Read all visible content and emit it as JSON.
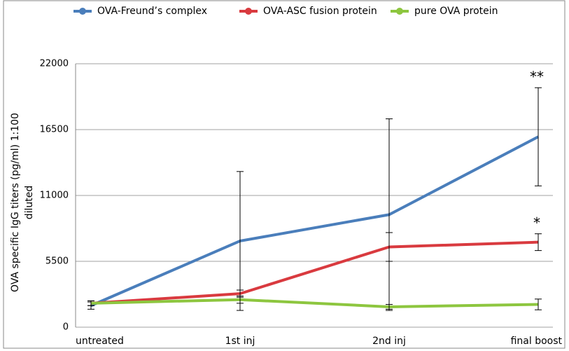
{
  "chart_data": {
    "type": "line",
    "ylabel": [
      "OVA specific IgG titers (pg/ml)  1:100",
      "diluted"
    ],
    "categories": [
      "untreated",
      "1st inj",
      "2nd inj",
      "final boost"
    ],
    "series": [
      {
        "name": "OVA-Freund’s complex",
        "color": "#4a7ebb",
        "values": [
          1800,
          7200,
          9400,
          15900
        ],
        "errors": [
          300,
          5800,
          8000,
          4100
        ]
      },
      {
        "name": "OVA-ASC fusion protein",
        "color": "#d93a3f",
        "values": [
          2000,
          2800,
          6700,
          7100
        ],
        "errors": [
          200,
          300,
          1200,
          700
        ]
      },
      {
        "name": "pure OVA protein",
        "color": "#8dc63f",
        "values": [
          2000,
          2300,
          1700,
          1900
        ],
        "errors": [
          200,
          300,
          200,
          450
        ]
      }
    ],
    "annotations": [
      {
        "text": "**",
        "series": 0,
        "category": 3
      },
      {
        "text": "*",
        "series": 1,
        "category": 3
      }
    ],
    "ylim": [
      0,
      22000
    ],
    "yticks": [
      0,
      5500,
      11000,
      16500,
      22000
    ],
    "grid": true,
    "legend": "top"
  }
}
